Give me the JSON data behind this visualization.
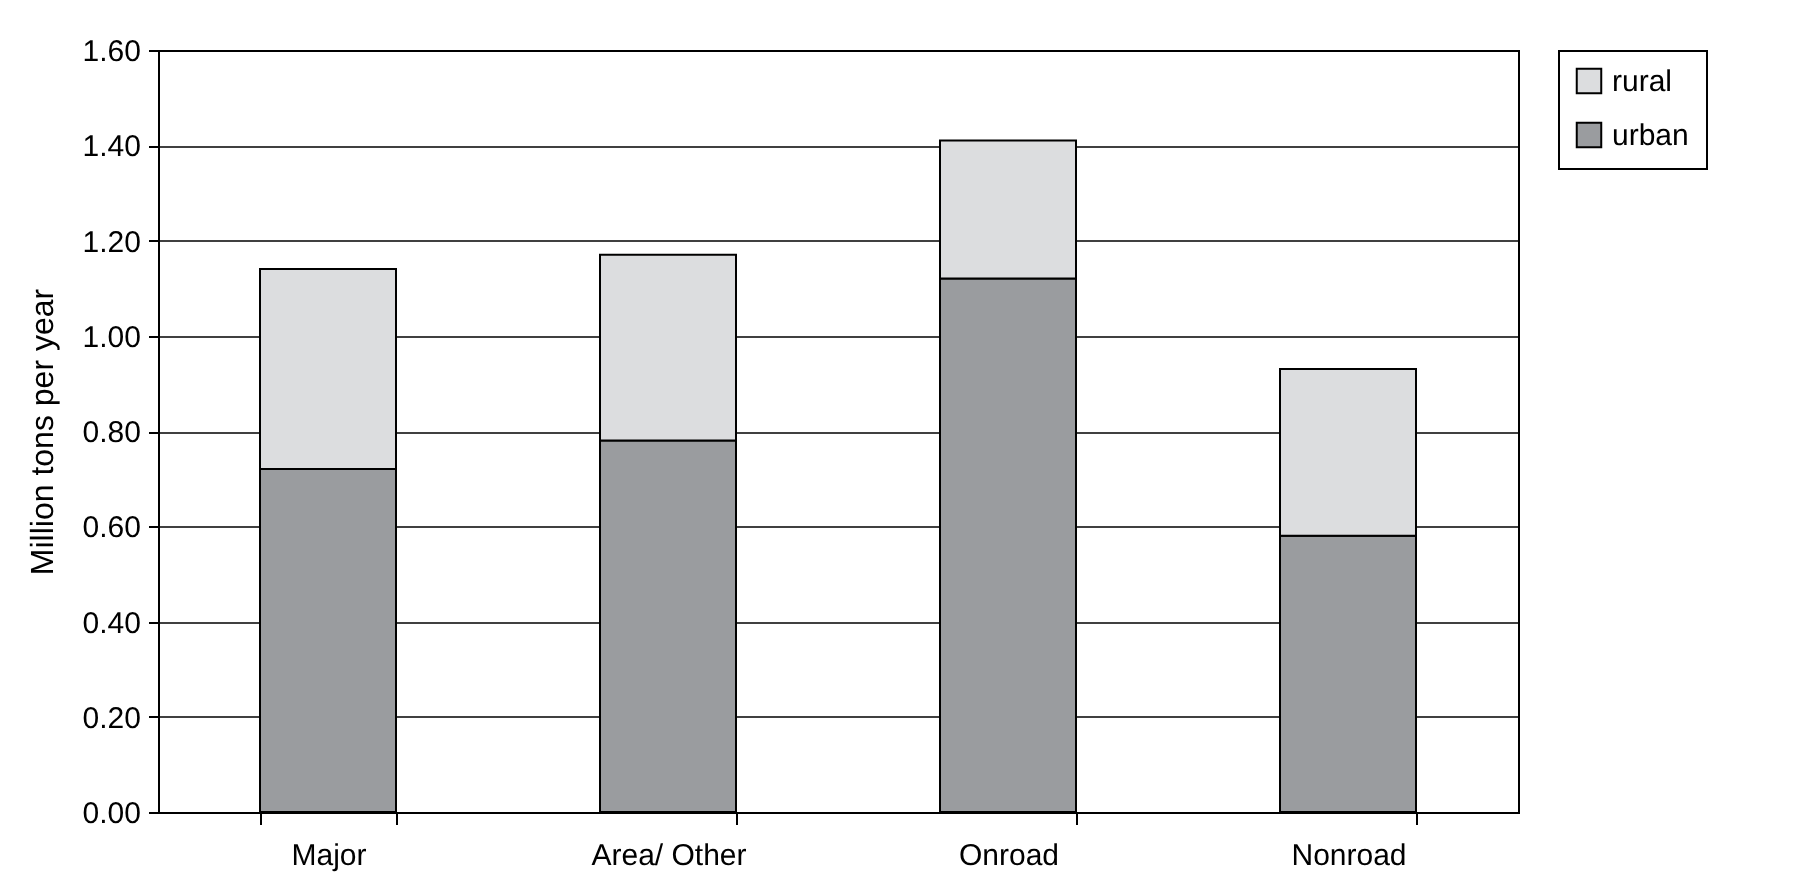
{
  "chart_data": {
    "type": "bar",
    "ylabel": "Million tons per year",
    "categories": [
      "Major",
      "Area/ Other",
      "Onroad",
      "Nonroad"
    ],
    "series": [
      {
        "name": "urban",
        "color": "#9a9c9f",
        "values": [
          0.72,
          0.78,
          1.12,
          0.58
        ]
      },
      {
        "name": "rural",
        "color": "#dcdddf",
        "values": [
          0.42,
          0.39,
          0.29,
          0.35
        ]
      }
    ],
    "stacked": true,
    "ylim": [
      0,
      1.6
    ],
    "yticks": [
      {
        "value": 0,
        "label": "0.00"
      },
      {
        "value": 0.2,
        "label": "0.20"
      },
      {
        "value": 0.4,
        "label": "0.40"
      },
      {
        "value": 0.6,
        "label": "0.60"
      },
      {
        "value": 0.8,
        "label": "0.80"
      },
      {
        "value": 1.0,
        "label": "1.00"
      },
      {
        "value": 1.2,
        "label": "1.20"
      },
      {
        "value": 1.4,
        "label": "1.40"
      },
      {
        "value": 1.6,
        "label": "1.60"
      }
    ],
    "grid": "y",
    "legend": "right"
  }
}
